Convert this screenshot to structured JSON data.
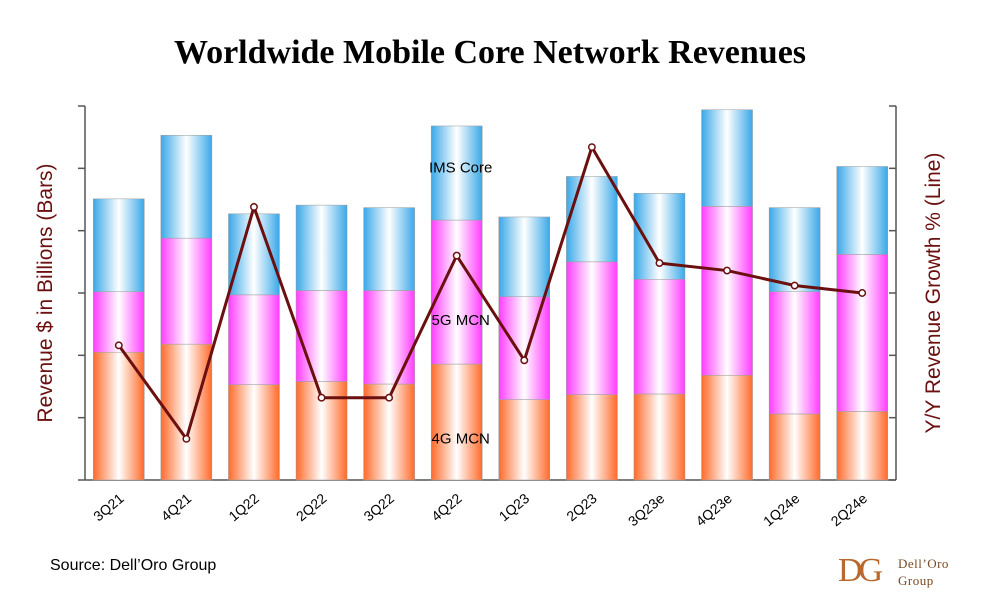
{
  "chart_data": {
    "type": "bar",
    "title": "Worldwide Mobile Core Network Revenues",
    "ylabel": "Revenue $ in Billions (Bars)",
    "y2label": "Y/Y Revenue Growth % (Line)",
    "stacked": true,
    "categories": [
      "3Q21",
      "4Q21",
      "1Q22",
      "2Q22",
      "3Q22",
      "4Q22",
      "1Q23",
      "2Q23",
      "3Q23e",
      "4Q23e",
      "1Q24e",
      "2Q24e"
    ],
    "series": [
      {
        "name": "4G MCN",
        "values": [
          2.05,
          2.18,
          1.53,
          1.58,
          1.54,
          1.86,
          1.29,
          1.37,
          1.38,
          1.68,
          1.06,
          1.1
        ],
        "color": "#ff6a2a"
      },
      {
        "name": "5G MCN",
        "values": [
          0.97,
          1.7,
          1.44,
          1.46,
          1.5,
          2.31,
          1.65,
          2.13,
          1.84,
          2.71,
          1.96,
          2.52
        ],
        "color": "#ff3dff"
      },
      {
        "name": "IMS Core",
        "values": [
          1.49,
          1.65,
          1.3,
          1.37,
          1.33,
          1.51,
          1.28,
          1.37,
          1.38,
          1.55,
          1.35,
          1.41
        ],
        "color": "#3aa8e8"
      }
    ],
    "line": {
      "name": "Y/Y Revenue Growth",
      "values": [
        0.36,
        0.11,
        0.73,
        0.22,
        0.22,
        0.6,
        0.32,
        0.89,
        0.58,
        0.56,
        0.52,
        0.5
      ],
      "color": "#6b0f0f"
    },
    "ylim": [
      0,
      6
    ],
    "grid": false
  },
  "source": "Source: Dell’Oro Group",
  "logo": {
    "mark": "DG",
    "line1": "Dell’Oro",
    "line2": "Group"
  }
}
